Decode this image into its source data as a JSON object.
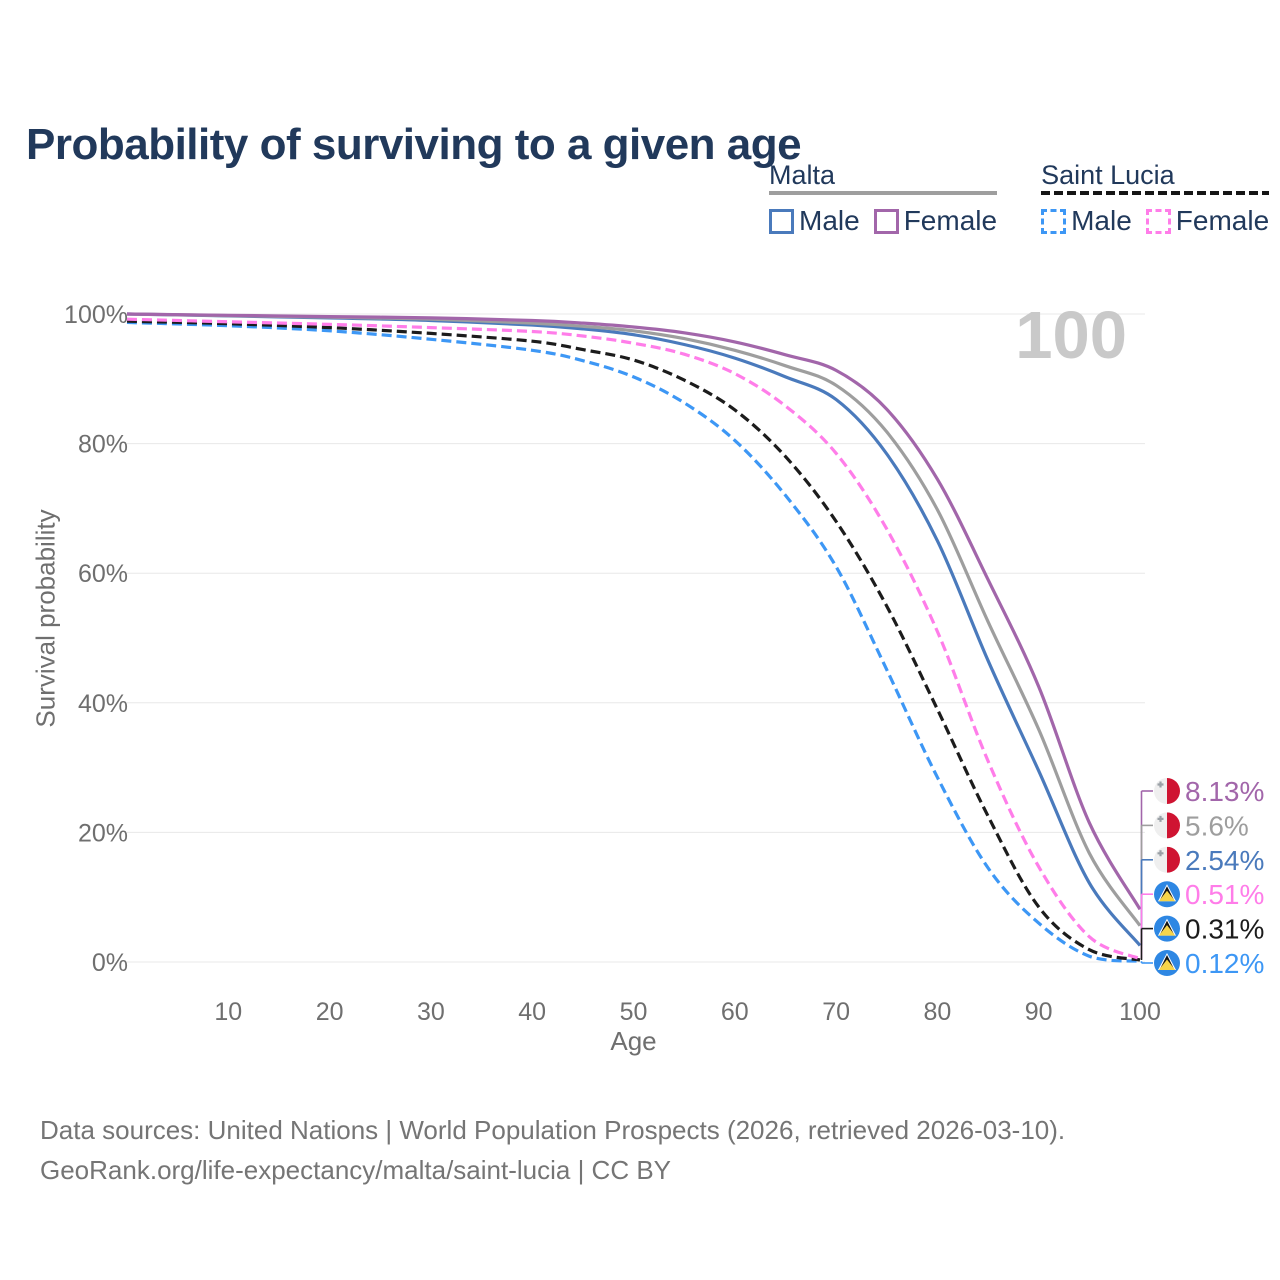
{
  "chart_data": {
    "type": "line",
    "title": "Probability of surviving to a given age",
    "xlabel": "Age",
    "ylabel": "Survival probability",
    "watermark": "100",
    "x_ticks": [
      10,
      20,
      30,
      40,
      50,
      60,
      70,
      80,
      90,
      100
    ],
    "y_ticks": [
      100,
      80,
      60,
      40,
      20,
      0
    ],
    "y_tick_suffix": "%",
    "xlim": [
      0,
      100
    ],
    "ylim": [
      0,
      100
    ],
    "grid": true,
    "legend_position": "top-right",
    "series": [
      {
        "id": "saint-lucia-male",
        "name": "Saint Lucia Male",
        "color": "#3d97f5",
        "dashed": true,
        "flag": "saint-lucia",
        "end_label": "0.12%",
        "points": [
          [
            0,
            98.7
          ],
          [
            10,
            98.2
          ],
          [
            20,
            97.4
          ],
          [
            30,
            96.1
          ],
          [
            40,
            94.4
          ],
          [
            45,
            92.8
          ],
          [
            50,
            90.3
          ],
          [
            55,
            86.3
          ],
          [
            60,
            80.5
          ],
          [
            65,
            72.0
          ],
          [
            70,
            61.0
          ],
          [
            75,
            45.1
          ],
          [
            80,
            28.5
          ],
          [
            85,
            14.5
          ],
          [
            90,
            6.0
          ],
          [
            95,
            0.9
          ],
          [
            100,
            0.12
          ]
        ]
      },
      {
        "id": "saint-lucia-all",
        "name": "Saint Lucia",
        "color": "#1c1c1c",
        "dashed": true,
        "flag": "saint-lucia",
        "end_label": "0.31%",
        "points": [
          [
            0,
            98.9
          ],
          [
            10,
            98.5
          ],
          [
            20,
            97.9
          ],
          [
            30,
            97.0
          ],
          [
            40,
            95.8
          ],
          [
            45,
            94.5
          ],
          [
            50,
            92.9
          ],
          [
            55,
            89.8
          ],
          [
            60,
            85.2
          ],
          [
            65,
            78.0
          ],
          [
            70,
            68.0
          ],
          [
            75,
            54.9
          ],
          [
            80,
            39.0
          ],
          [
            85,
            22.5
          ],
          [
            90,
            8.5
          ],
          [
            95,
            1.9
          ],
          [
            100,
            0.31
          ]
        ]
      },
      {
        "id": "saint-lucia-female",
        "name": "Saint Lucia Female",
        "color": "#ff7de9",
        "dashed": true,
        "flag": "saint-lucia",
        "end_label": "0.51%",
        "points": [
          [
            0,
            99.2
          ],
          [
            10,
            98.8
          ],
          [
            20,
            98.4
          ],
          [
            30,
            97.9
          ],
          [
            40,
            97.3
          ],
          [
            45,
            96.6
          ],
          [
            50,
            95.5
          ],
          [
            55,
            93.8
          ],
          [
            60,
            90.8
          ],
          [
            65,
            85.8
          ],
          [
            70,
            78.5
          ],
          [
            75,
            66.8
          ],
          [
            80,
            51.0
          ],
          [
            85,
            31.0
          ],
          [
            90,
            14.7
          ],
          [
            95,
            3.9
          ],
          [
            100,
            0.51
          ]
        ]
      },
      {
        "id": "malta-male",
        "name": "Malta Male",
        "color": "#4a7abc",
        "dashed": false,
        "flag": "malta",
        "end_label": "2.54%",
        "points": [
          [
            0,
            100
          ],
          [
            10,
            99.7
          ],
          [
            20,
            99.4
          ],
          [
            30,
            99.0
          ],
          [
            40,
            98.3
          ],
          [
            45,
            97.7
          ],
          [
            50,
            96.8
          ],
          [
            55,
            95.3
          ],
          [
            60,
            93.2
          ],
          [
            65,
            90.3
          ],
          [
            70,
            86.8
          ],
          [
            75,
            78.4
          ],
          [
            80,
            65.0
          ],
          [
            85,
            46.5
          ],
          [
            90,
            29.5
          ],
          [
            95,
            12.2
          ],
          [
            100,
            2.54
          ]
        ]
      },
      {
        "id": "malta-all",
        "name": "Malta",
        "color": "#9e9e9e",
        "dashed": false,
        "flag": "malta",
        "end_label": "5.6%",
        "points": [
          [
            0,
            100
          ],
          [
            10,
            99.75
          ],
          [
            20,
            99.5
          ],
          [
            30,
            99.2
          ],
          [
            40,
            98.6
          ],
          [
            45,
            98.1
          ],
          [
            50,
            97.4
          ],
          [
            55,
            96.2
          ],
          [
            60,
            94.4
          ],
          [
            65,
            92.0
          ],
          [
            70,
            89.0
          ],
          [
            75,
            81.8
          ],
          [
            80,
            69.8
          ],
          [
            85,
            52.5
          ],
          [
            90,
            35.9
          ],
          [
            95,
            16.8
          ],
          [
            100,
            5.6
          ]
        ]
      },
      {
        "id": "malta-female",
        "name": "Malta Female",
        "color": "#a266aa",
        "dashed": false,
        "flag": "malta",
        "end_label": "8.13%",
        "points": [
          [
            0,
            100
          ],
          [
            10,
            99.8
          ],
          [
            20,
            99.6
          ],
          [
            30,
            99.4
          ],
          [
            40,
            99.0
          ],
          [
            45,
            98.6
          ],
          [
            50,
            98.0
          ],
          [
            55,
            97.1
          ],
          [
            60,
            95.7
          ],
          [
            65,
            93.7
          ],
          [
            70,
            91.3
          ],
          [
            75,
            85.3
          ],
          [
            80,
            74.5
          ],
          [
            85,
            59.0
          ],
          [
            90,
            42.5
          ],
          [
            95,
            21.5
          ],
          [
            100,
            8.13
          ]
        ]
      }
    ],
    "end_labels_order": [
      "malta-female",
      "malta-all",
      "malta-male",
      "saint-lucia-female",
      "saint-lucia-all",
      "saint-lucia-male"
    ]
  },
  "legend": {
    "groups": [
      {
        "id": "malta",
        "label": "Malta",
        "underline": "solid",
        "underline_color": "#9e9e9e",
        "items": [
          {
            "label": "Male",
            "color": "#4a7abc",
            "dashed": false
          },
          {
            "label": "Female",
            "color": "#a266aa",
            "dashed": false
          }
        ]
      },
      {
        "id": "saint-lucia",
        "label": "Saint Lucia",
        "underline": "dashed",
        "underline_color": "#151515",
        "items": [
          {
            "label": "Male",
            "color": "#3d97f5",
            "dashed": true
          },
          {
            "label": "Female",
            "color": "#ff7de9",
            "dashed": true
          }
        ]
      }
    ]
  },
  "sources": {
    "line1": "Data sources: United Nations | World Population Prospects (2026, retrieved 2026-03-10).",
    "line2": "GeoRank.org/life-expectancy/malta/saint-lucia | CC BY"
  },
  "flag_colors": {
    "malta_white": "#efefef",
    "malta_red": "#cf1432",
    "malta_cross": "#9aa0a6",
    "saint_lucia_blue": "#2e87e3",
    "saint_lucia_white": "#ffffff",
    "saint_lucia_black": "#121212",
    "saint_lucia_gold": "#f6d44a"
  }
}
